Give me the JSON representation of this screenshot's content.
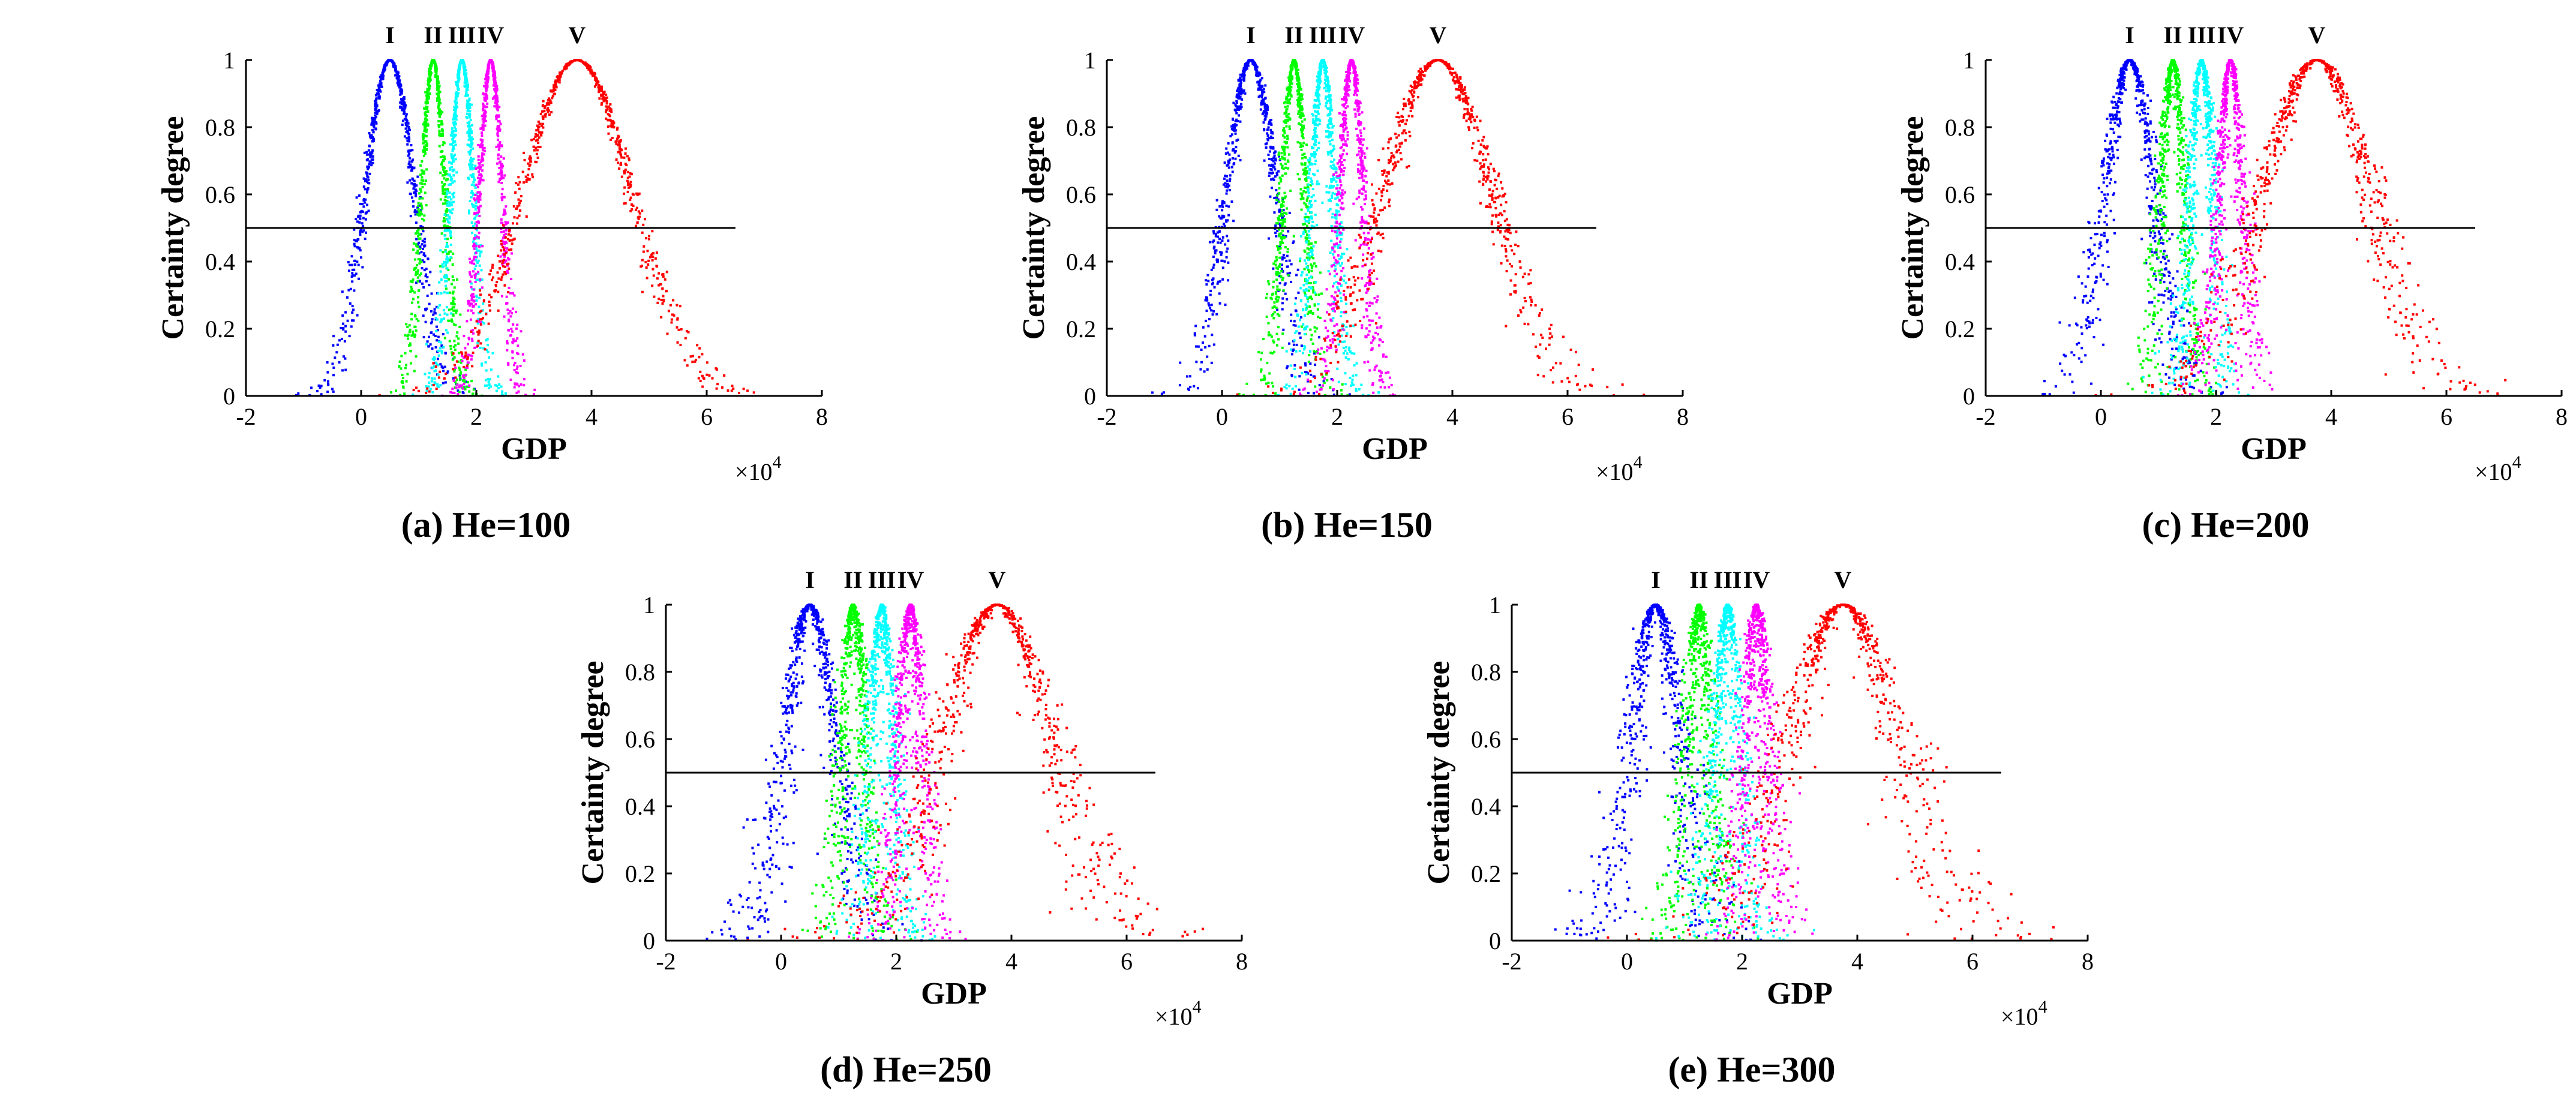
{
  "chart_data": [
    {
      "type": "scatter",
      "caption": "(a) He=100",
      "he": 100,
      "xlabel": "GDP",
      "ylabel": "Certainty degree",
      "x_multiplier": "×10",
      "x_multiplier_exp": "4",
      "xlim": [
        -2,
        8
      ],
      "ylim": [
        0,
        1
      ],
      "xticks": [
        "-2",
        "0",
        "2",
        "4",
        "6",
        "8"
      ],
      "yticks": [
        "0",
        "0.2",
        "0.4",
        "0.6",
        "0.8",
        "1"
      ],
      "threshold": 0.5,
      "series": [
        {
          "name": "I",
          "ex": 0.5,
          "en": 0.43,
          "color": "#0000ff"
        },
        {
          "name": "II",
          "ex": 1.25,
          "en": 0.2,
          "color": "#00ff00"
        },
        {
          "name": "III",
          "ex": 1.75,
          "en": 0.2,
          "color": "#00ffff"
        },
        {
          "name": "IV",
          "ex": 2.25,
          "en": 0.2,
          "color": "#ff00ff"
        },
        {
          "name": "V",
          "ex": 3.75,
          "en": 0.95,
          "color": "#ff0000"
        }
      ]
    },
    {
      "type": "scatter",
      "caption": "(b) He=150",
      "he": 150,
      "xlabel": "GDP",
      "ylabel": "Certainty degree",
      "x_multiplier": "×10",
      "x_multiplier_exp": "4",
      "xlim": [
        -2,
        8
      ],
      "ylim": [
        0,
        1
      ],
      "xticks": [
        "-2",
        "0",
        "2",
        "4",
        "6",
        "8"
      ],
      "yticks": [
        "0",
        "0.2",
        "0.4",
        "0.6",
        "0.8",
        "1"
      ],
      "threshold": 0.5,
      "series": [
        {
          "name": "I",
          "ex": 0.5,
          "en": 0.43,
          "color": "#0000ff"
        },
        {
          "name": "II",
          "ex": 1.25,
          "en": 0.2,
          "color": "#00ff00"
        },
        {
          "name": "III",
          "ex": 1.75,
          "en": 0.2,
          "color": "#00ffff"
        },
        {
          "name": "IV",
          "ex": 2.25,
          "en": 0.2,
          "color": "#ff00ff"
        },
        {
          "name": "V",
          "ex": 3.75,
          "en": 0.95,
          "color": "#ff0000"
        }
      ]
    },
    {
      "type": "scatter",
      "caption": "(c) He=200",
      "he": 200,
      "xlabel": "GDP",
      "ylabel": "Certainty degree",
      "x_multiplier": "×10",
      "x_multiplier_exp": "4",
      "xlim": [
        -2,
        8
      ],
      "ylim": [
        0,
        1
      ],
      "xticks": [
        "-2",
        "0",
        "2",
        "4",
        "6",
        "8"
      ],
      "yticks": [
        "0",
        "0.2",
        "0.4",
        "0.6",
        "0.8",
        "1"
      ],
      "threshold": 0.5,
      "series": [
        {
          "name": "I",
          "ex": 0.5,
          "en": 0.43,
          "color": "#0000ff"
        },
        {
          "name": "II",
          "ex": 1.25,
          "en": 0.2,
          "color": "#00ff00"
        },
        {
          "name": "III",
          "ex": 1.75,
          "en": 0.2,
          "color": "#00ffff"
        },
        {
          "name": "IV",
          "ex": 2.25,
          "en": 0.2,
          "color": "#ff00ff"
        },
        {
          "name": "V",
          "ex": 3.75,
          "en": 0.95,
          "color": "#ff0000"
        }
      ]
    },
    {
      "type": "scatter",
      "caption": "(d) He=250",
      "he": 250,
      "xlabel": "GDP",
      "ylabel": "Certainty degree",
      "x_multiplier": "×10",
      "x_multiplier_exp": "4",
      "xlim": [
        -2,
        8
      ],
      "ylim": [
        0,
        1
      ],
      "xticks": [
        "-2",
        "0",
        "2",
        "4",
        "6",
        "8"
      ],
      "yticks": [
        "0",
        "0.2",
        "0.4",
        "0.6",
        "0.8",
        "1"
      ],
      "threshold": 0.5,
      "series": [
        {
          "name": "I",
          "ex": 0.5,
          "en": 0.43,
          "color": "#0000ff"
        },
        {
          "name": "II",
          "ex": 1.25,
          "en": 0.2,
          "color": "#00ff00"
        },
        {
          "name": "III",
          "ex": 1.75,
          "en": 0.2,
          "color": "#00ffff"
        },
        {
          "name": "IV",
          "ex": 2.25,
          "en": 0.2,
          "color": "#ff00ff"
        },
        {
          "name": "V",
          "ex": 3.75,
          "en": 0.95,
          "color": "#ff0000"
        }
      ]
    },
    {
      "type": "scatter",
      "caption": "(e) He=300",
      "he": 300,
      "xlabel": "GDP",
      "ylabel": "Certainty degree",
      "x_multiplier": "×10",
      "x_multiplier_exp": "4",
      "xlim": [
        -2,
        8
      ],
      "ylim": [
        0,
        1
      ],
      "xticks": [
        "-2",
        "0",
        "2",
        "4",
        "6",
        "8"
      ],
      "yticks": [
        "0",
        "0.2",
        "0.4",
        "0.6",
        "0.8",
        "1"
      ],
      "threshold": 0.5,
      "series": [
        {
          "name": "I",
          "ex": 0.5,
          "en": 0.43,
          "color": "#0000ff"
        },
        {
          "name": "II",
          "ex": 1.25,
          "en": 0.2,
          "color": "#00ff00"
        },
        {
          "name": "III",
          "ex": 1.75,
          "en": 0.2,
          "color": "#00ffff"
        },
        {
          "name": "IV",
          "ex": 2.25,
          "en": 0.2,
          "color": "#ff00ff"
        },
        {
          "name": "V",
          "ex": 3.75,
          "en": 0.95,
          "color": "#ff0000"
        }
      ]
    }
  ]
}
